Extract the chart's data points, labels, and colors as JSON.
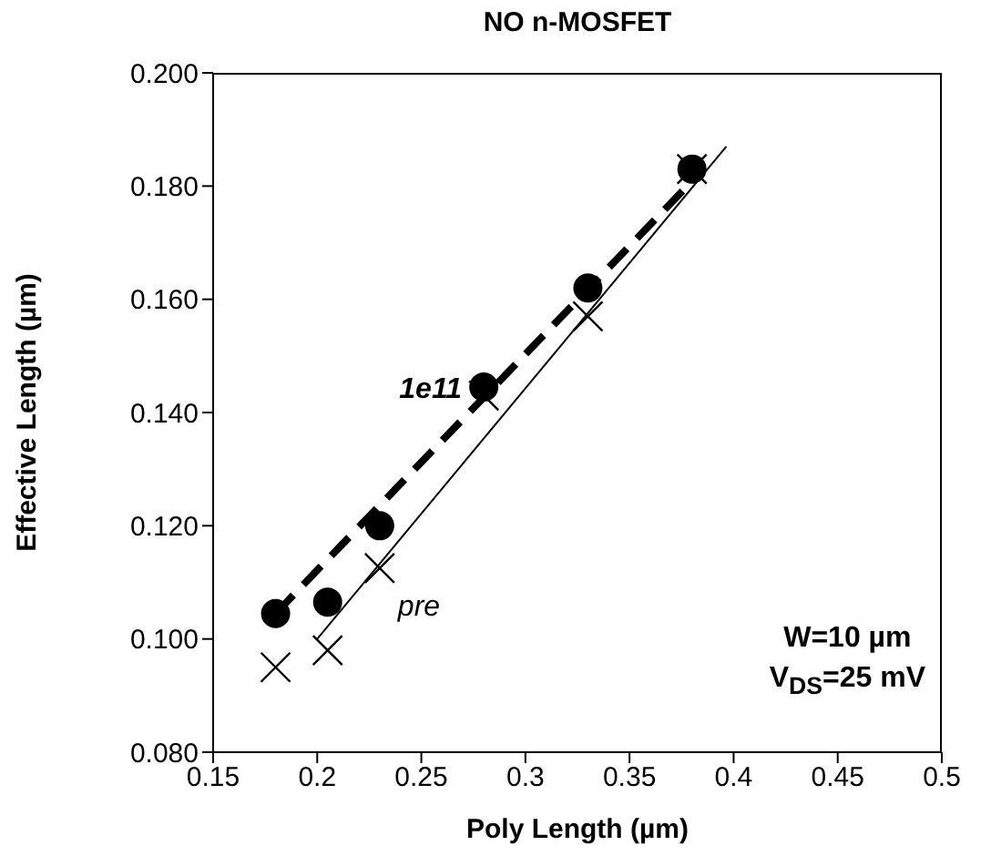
{
  "chart_data": {
    "type": "scatter",
    "title": "NO n-MOSFET",
    "xlabel": "Poly Length (µm)",
    "ylabel": "Effective Length (µm)",
    "xlim": [
      0.15,
      0.5
    ],
    "xticks": [
      0.15,
      0.2,
      0.25,
      0.3,
      0.35,
      0.4,
      0.45,
      0.5
    ],
    "ylim": [
      0.08,
      0.2
    ],
    "yticks": [
      {
        "value": 0.08,
        "label": "0.080"
      },
      {
        "value": 0.1,
        "label": "0.100"
      },
      {
        "value": 0.12,
        "label": "0.120"
      },
      {
        "value": 0.14,
        "label": "0.140"
      },
      {
        "value": 0.16,
        "label": "0.160"
      },
      {
        "value": 0.18,
        "label": "0.180"
      },
      {
        "value": 0.2,
        "label": "0.200"
      }
    ],
    "annotations": [
      "W=10 µm",
      "V$_{DS}$=25 mV"
    ],
    "series": [
      {
        "name": "1e11",
        "marker": "circle",
        "color": "#000000",
        "x": [
          0.18,
          0.205,
          0.23,
          0.28,
          0.33,
          0.38
        ],
        "values": [
          0.1045,
          0.1065,
          0.12,
          0.1445,
          0.162,
          0.183
        ]
      },
      {
        "name": "pre",
        "marker": "cross",
        "color": "#000000",
        "x": [
          0.18,
          0.205,
          0.23,
          0.28,
          0.33,
          0.38
        ],
        "values": [
          0.095,
          0.098,
          0.1125,
          0.143,
          0.157,
          0.183
        ]
      },
      {
        "type": "line",
        "marker": "none",
        "line_style": "dashed",
        "color": "#000000",
        "x": [
          0.18,
          0.383
        ],
        "values": [
          0.1045,
          0.182
        ]
      },
      {
        "type": "line",
        "marker": "none",
        "line_style": "solid",
        "color": "#000000",
        "x": [
          0.2,
          0.3965
        ],
        "values": [
          0.1,
          0.187
        ]
      }
    ]
  }
}
